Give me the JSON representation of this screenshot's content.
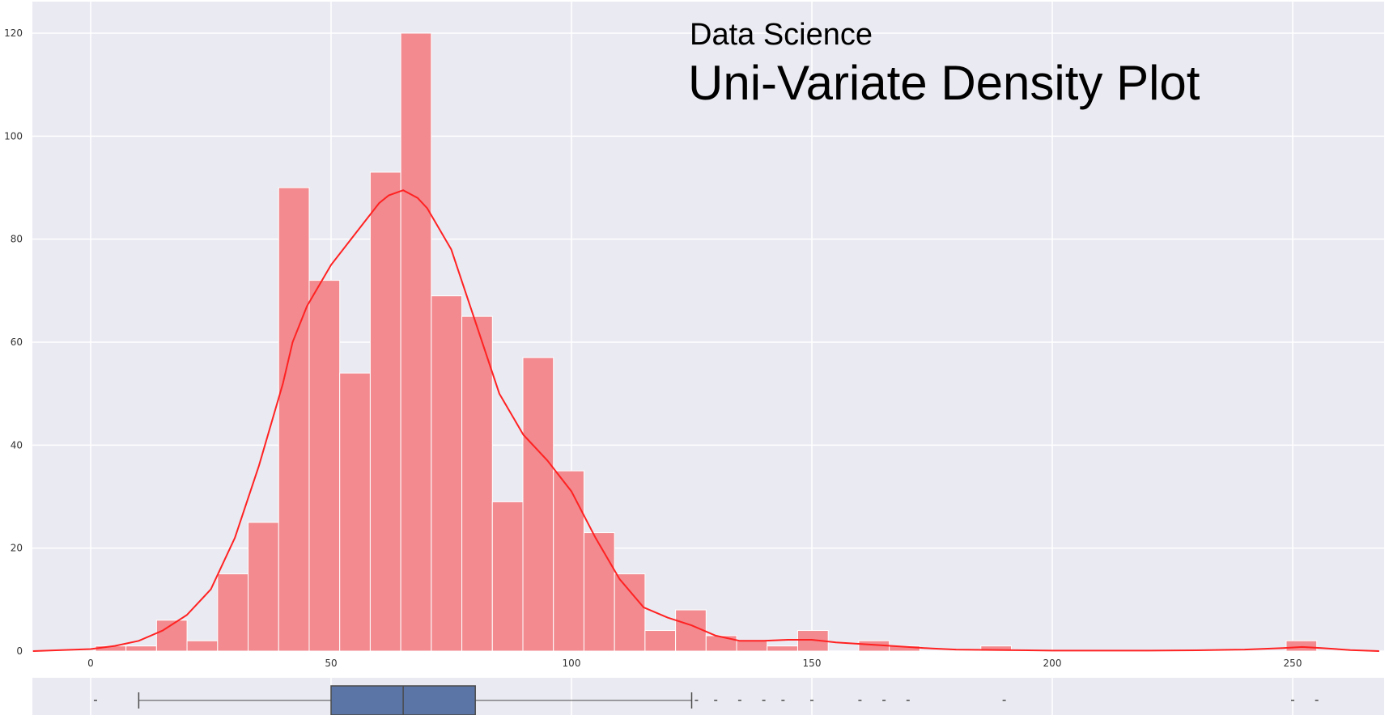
{
  "chart_data": {
    "type": "bar",
    "subtitle": "Data Science",
    "title": "Uni-Variate Density Plot",
    "xlabel": "",
    "ylabel": "",
    "xlim": [
      -12,
      268
    ],
    "ylim": [
      0,
      125
    ],
    "x_ticks": [
      0,
      50,
      100,
      150,
      200,
      250
    ],
    "y_ticks": [
      0,
      20,
      40,
      60,
      80,
      100,
      120
    ],
    "grid": true,
    "bin_width": 6.35,
    "bins": [
      {
        "x0": 1.0,
        "count": 1
      },
      {
        "x0": 7.35,
        "count": 1
      },
      {
        "x0": 13.7,
        "count": 6
      },
      {
        "x0": 20.05,
        "count": 2
      },
      {
        "x0": 26.4,
        "count": 15
      },
      {
        "x0": 32.75,
        "count": 25
      },
      {
        "x0": 39.1,
        "count": 90
      },
      {
        "x0": 45.45,
        "count": 72
      },
      {
        "x0": 51.8,
        "count": 54
      },
      {
        "x0": 58.15,
        "count": 93
      },
      {
        "x0": 64.5,
        "count": 120
      },
      {
        "x0": 70.85,
        "count": 69
      },
      {
        "x0": 77.2,
        "count": 65
      },
      {
        "x0": 83.55,
        "count": 29
      },
      {
        "x0": 89.9,
        "count": 57
      },
      {
        "x0": 96.25,
        "count": 35
      },
      {
        "x0": 102.6,
        "count": 23
      },
      {
        "x0": 108.95,
        "count": 15
      },
      {
        "x0": 115.3,
        "count": 4
      },
      {
        "x0": 121.65,
        "count": 8
      },
      {
        "x0": 128.0,
        "count": 3
      },
      {
        "x0": 134.35,
        "count": 2
      },
      {
        "x0": 140.7,
        "count": 1
      },
      {
        "x0": 147.05,
        "count": 4
      },
      {
        "x0": 159.75,
        "count": 2
      },
      {
        "x0": 166.1,
        "count": 1
      },
      {
        "x0": 185.15,
        "count": 1
      },
      {
        "x0": 248.65,
        "count": 2
      }
    ],
    "kde": {
      "x": [
        -12,
        0,
        5,
        10,
        15,
        20,
        25,
        30,
        35,
        40,
        42,
        45,
        50,
        55,
        60,
        62,
        65,
        68,
        70,
        75,
        80,
        85,
        90,
        95,
        100,
        105,
        110,
        115,
        120,
        125,
        130,
        135,
        140,
        145,
        150,
        155,
        160,
        165,
        170,
        175,
        180,
        190,
        200,
        210,
        220,
        230,
        240,
        248,
        252,
        256,
        262,
        268
      ],
      "y": [
        0,
        0.4,
        1,
        2,
        4,
        7,
        12,
        22,
        36,
        52,
        60,
        67,
        75,
        81,
        87,
        88.5,
        89.5,
        88,
        86,
        78,
        64,
        50,
        42,
        37,
        31,
        22,
        14,
        8.5,
        6.5,
        5,
        3,
        2,
        2,
        2.2,
        2.2,
        1.7,
        1.4,
        1.1,
        0.8,
        0.5,
        0.3,
        0.2,
        0.1,
        0.1,
        0.1,
        0.15,
        0.3,
        0.6,
        0.8,
        0.6,
        0.2,
        0
      ]
    },
    "boxplot": {
      "whisker_low": 10,
      "q1": 50,
      "median": 65,
      "q3": 80,
      "whisker_high": 125,
      "outliers": [
        1,
        126,
        130,
        135,
        140,
        144,
        150,
        160,
        165,
        170,
        190,
        250,
        255
      ]
    },
    "colors": {
      "background": "#eaeaf2",
      "grid": "#ffffff",
      "bar_fill": "#f28a8f",
      "bar_edge": "#ffffff",
      "kde_line": "#ff2222",
      "box_fill": "#5b76a6",
      "box_line": "#4a4a4a"
    }
  }
}
